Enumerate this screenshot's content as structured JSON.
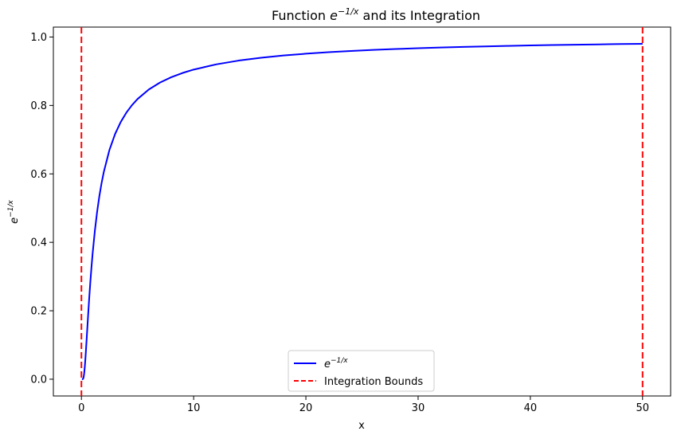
{
  "chart_data": {
    "type": "line",
    "title": "Function e^{−1/x} and its Integration",
    "title_parts": {
      "prefix": "Function ",
      "base": "e",
      "exponent": "−1/x",
      "suffix": " and its Integration"
    },
    "xlabel": "x",
    "ylabel": {
      "base": "e",
      "exponent": "−1/x"
    },
    "xlim": [
      -2.5,
      52.5
    ],
    "ylim": [
      -0.049,
      1.029
    ],
    "xticks": [
      0,
      10,
      20,
      30,
      40,
      50
    ],
    "xtick_labels": [
      "0",
      "10",
      "20",
      "30",
      "40",
      "50"
    ],
    "yticks": [
      0.0,
      0.2,
      0.4,
      0.6,
      0.8,
      1.0
    ],
    "ytick_labels": [
      "0.0",
      "0.2",
      "0.4",
      "0.6",
      "0.8",
      "1.0"
    ],
    "grid": false,
    "legend_position": "lower center",
    "series": [
      {
        "name": "e^{−1/x}",
        "legend_base": "e",
        "legend_exponent": "−1/x",
        "color": "#0000ff",
        "style": "solid",
        "x": [
          0.05,
          0.1,
          0.15,
          0.2,
          0.25,
          0.3,
          0.35,
          0.4,
          0.5,
          0.6,
          0.7,
          0.8,
          0.9,
          1.0,
          1.2,
          1.4,
          1.6,
          1.8,
          2.0,
          2.5,
          3.0,
          3.5,
          4.0,
          4.5,
          5.0,
          6,
          7,
          8,
          9,
          10,
          12,
          14,
          16,
          18,
          20,
          22,
          24,
          26,
          28,
          30,
          32,
          34,
          36,
          38,
          40,
          42,
          44,
          46,
          48,
          50
        ],
        "y": [
          0.0,
          4.54e-05,
          0.00127,
          0.00674,
          0.0183,
          0.0357,
          0.0574,
          0.0821,
          0.1353,
          0.1889,
          0.2397,
          0.2865,
          0.3292,
          0.3679,
          0.4346,
          0.4895,
          0.5353,
          0.5738,
          0.6065,
          0.6703,
          0.7165,
          0.7515,
          0.7788,
          0.8007,
          0.8187,
          0.8465,
          0.8669,
          0.8825,
          0.8948,
          0.9048,
          0.92,
          0.9311,
          0.9394,
          0.946,
          0.9512,
          0.9556,
          0.9592,
          0.9623,
          0.9649,
          0.9672,
          0.9692,
          0.971,
          0.9726,
          0.974,
          0.9753,
          0.9765,
          0.9775,
          0.9785,
          0.9794,
          0.9802
        ]
      }
    ],
    "vlines": [
      {
        "name": "Integration Bounds",
        "x": [
          0,
          50
        ],
        "color": "#ff0000",
        "style": "dashed"
      }
    ]
  }
}
